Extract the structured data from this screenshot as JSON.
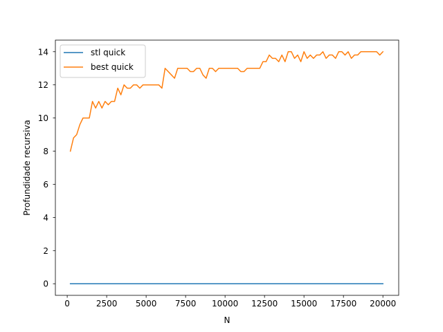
{
  "chart_data": {
    "type": "line",
    "title": "",
    "xlabel": "N",
    "ylabel": "Profundidade recursiva",
    "xlim": [
      -750,
      21000
    ],
    "ylim": [
      -0.7,
      14.7
    ],
    "xticks": [
      0,
      2500,
      5000,
      7500,
      10000,
      12500,
      15000,
      17500,
      20000
    ],
    "yticks": [
      0,
      2,
      4,
      6,
      8,
      10,
      12,
      14
    ],
    "grid": false,
    "legend": "top-left",
    "colors": {
      "stl quick": "#1f77b4",
      "best quick": "#ff7f0e"
    },
    "series": [
      {
        "name": "stl quick",
        "x": [
          200,
          20000
        ],
        "y": [
          0,
          0
        ]
      },
      {
        "name": "best quick",
        "x": [
          200,
          400,
          600,
          800,
          1000,
          1200,
          1400,
          1600,
          1800,
          2000,
          2200,
          2400,
          2600,
          2800,
          3000,
          3200,
          3400,
          3600,
          3800,
          4000,
          4200,
          4400,
          4600,
          4800,
          5000,
          5200,
          5400,
          5600,
          5800,
          6000,
          6200,
          6400,
          6600,
          6800,
          7000,
          7200,
          7400,
          7600,
          7800,
          8000,
          8200,
          8400,
          8600,
          8800,
          9000,
          9200,
          9400,
          9600,
          9800,
          10000,
          10200,
          10400,
          10600,
          10800,
          11000,
          11200,
          11400,
          11600,
          11800,
          12000,
          12200,
          12400,
          12600,
          12800,
          13000,
          13200,
          13400,
          13600,
          13800,
          14000,
          14200,
          14400,
          14600,
          14800,
          15000,
          15200,
          15400,
          15600,
          15800,
          16000,
          16200,
          16400,
          16600,
          16800,
          17000,
          17200,
          17400,
          17600,
          17800,
          18000,
          18200,
          18400,
          18600,
          18800,
          19000,
          19200,
          19400,
          19600,
          19800,
          20000
        ],
        "y": [
          8,
          8.8,
          9,
          9.6,
          10,
          10,
          10,
          11,
          10.6,
          11,
          10.6,
          11,
          10.8,
          11,
          11,
          11.8,
          11.4,
          12,
          11.8,
          11.8,
          12,
          12,
          11.8,
          12,
          12,
          12,
          12,
          12,
          12,
          11.8,
          13,
          12.8,
          12.6,
          12.4,
          13,
          13,
          13,
          13,
          12.8,
          12.8,
          13,
          13,
          12.6,
          12.4,
          13,
          13,
          12.8,
          13,
          13,
          13,
          13,
          13,
          13,
          13,
          12.8,
          12.8,
          13,
          13,
          13,
          13,
          13,
          13.4,
          13.4,
          13.8,
          13.6,
          13.6,
          13.4,
          13.8,
          13.4,
          14,
          14,
          13.6,
          13.8,
          13.4,
          14,
          13.6,
          13.8,
          13.6,
          13.8,
          13.8,
          14,
          13.6,
          13.8,
          13.8,
          13.6,
          14,
          14,
          13.8,
          14,
          13.6,
          13.8,
          13.8,
          14,
          14,
          14,
          14,
          14,
          14,
          13.8,
          14
        ]
      }
    ]
  }
}
